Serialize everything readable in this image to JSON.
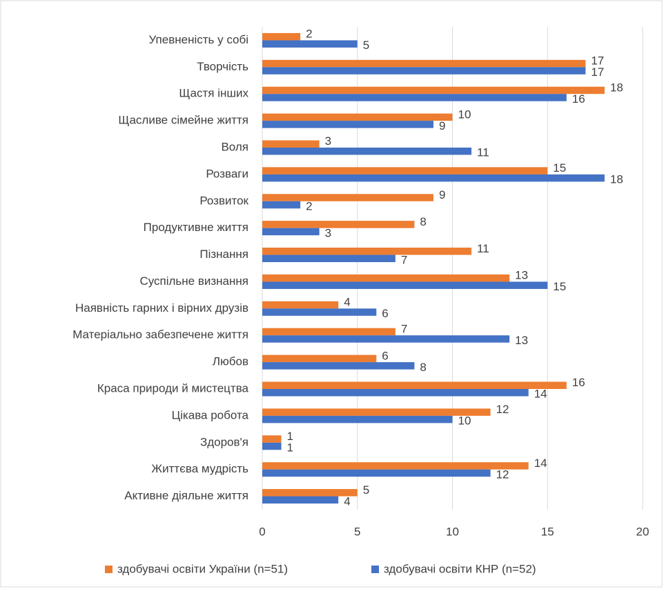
{
  "chart_data": {
    "type": "hbar",
    "categories": [
      "Упевненість у собі",
      "Творчість",
      "Щастя інших",
      "Щасливе сімейне життя",
      "Воля",
      "Розваги",
      "Розвиток",
      "Продуктивне життя",
      "Пізнання",
      "Суспільне визнання",
      "Наявність гарних і вірних друзів",
      "Матеріально забезпечене життя",
      "Любов",
      "Краса природи й мистецтва",
      "Цікава робота",
      "Здоров'я",
      "Життєва мудрість",
      "Активне діяльне життя"
    ],
    "series": [
      {
        "name": "здобувачі освіти України (n=51)",
        "color": "#ed7d31",
        "values": [
          2,
          17,
          18,
          10,
          3,
          15,
          9,
          8,
          11,
          13,
          4,
          7,
          6,
          16,
          12,
          1,
          14,
          5
        ]
      },
      {
        "name": "здобувачі освіти КНР (n=52)",
        "color": "#4472c4",
        "values": [
          5,
          17,
          16,
          9,
          11,
          18,
          2,
          3,
          7,
          15,
          6,
          13,
          8,
          14,
          10,
          1,
          12,
          4
        ]
      }
    ],
    "xlim": [
      0,
      20
    ],
    "xticks": [
      0,
      5,
      10,
      15,
      20
    ],
    "grid": true,
    "legend": "bottom"
  }
}
